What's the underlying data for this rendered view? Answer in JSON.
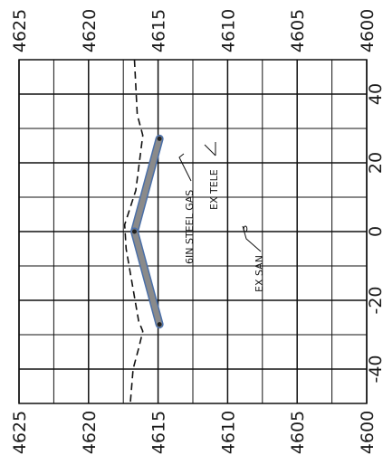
{
  "elevation_axis": {
    "ticks": [
      4625,
      4620,
      4615,
      4610,
      4605,
      4600
    ],
    "range": [
      4600,
      4625
    ]
  },
  "station_axis": {
    "ticks": [
      40,
      20,
      0,
      -20,
      -40
    ],
    "range": [
      -50,
      50
    ]
  },
  "ground_profile": [
    {
      "sta": 50,
      "elev": 4616.7
    },
    {
      "sta": 34,
      "elev": 4616.5
    },
    {
      "sta": 28,
      "elev": 4616.1
    },
    {
      "sta": 12,
      "elev": 4616.6
    },
    {
      "sta": 2,
      "elev": 4617.4
    },
    {
      "sta": -5,
      "elev": 4617.3
    },
    {
      "sta": -26,
      "elev": 4616.4
    },
    {
      "sta": -29,
      "elev": 4616.1
    },
    {
      "sta": -34,
      "elev": 4616.4
    },
    {
      "sta": -40,
      "elev": 4616.8
    },
    {
      "sta": -50,
      "elev": 4617.0
    }
  ],
  "pipe": [
    {
      "sta": 27,
      "elev": 4614.9
    },
    {
      "sta": 0,
      "elev": 4616.7
    },
    {
      "sta": -27,
      "elev": 4614.9
    }
  ],
  "pipe_style": {
    "fill": "#8a8a8a",
    "edge": "#4a6fa8"
  },
  "annotations": [
    {
      "id": "gas",
      "text": "6IN STEEL GAS"
    },
    {
      "id": "tele",
      "text": "EX TELE"
    },
    {
      "id": "san",
      "text": "EX SAN"
    }
  ]
}
